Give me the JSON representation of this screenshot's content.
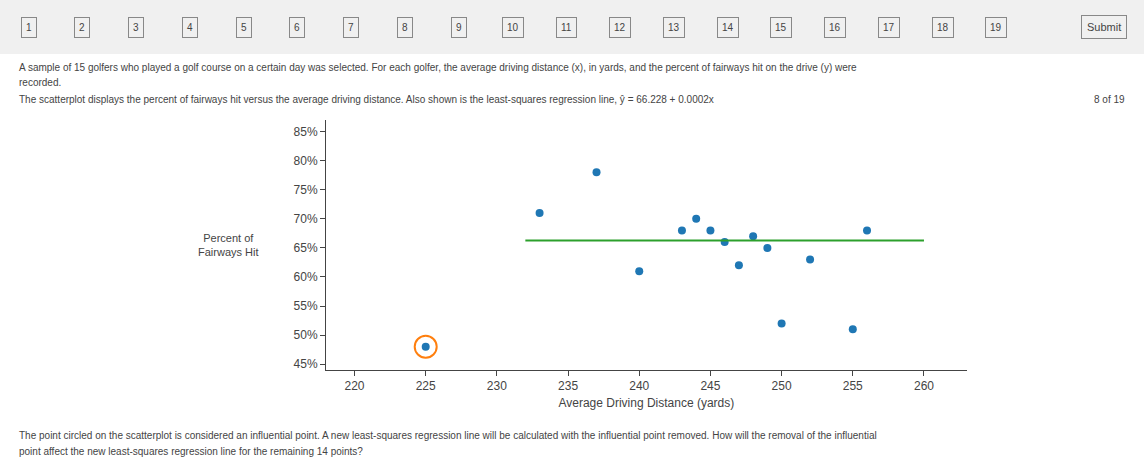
{
  "chart_data": {
    "type": "scatter",
    "xlabel": "Average Driving Distance (yards)",
    "ylabel": "Percent of\nFairways Hit",
    "series": [
      {
        "type": "scatter",
        "marker": "circle",
        "x": [
          225,
          233,
          237,
          240,
          243,
          244,
          245,
          246,
          247,
          248,
          249,
          250,
          252,
          255,
          256
        ],
        "values": [
          48,
          71,
          78,
          61,
          68,
          70,
          68,
          66,
          62,
          67,
          65,
          52,
          63,
          51,
          68
        ]
      },
      {
        "type": "scatter",
        "marker": "circle-open",
        "x": [
          225
        ],
        "values": [
          48
        ]
      },
      {
        "type": "line",
        "x": [
          232,
          260
        ],
        "values": [
          66.2744,
          66.28
        ]
      }
    ],
    "xlim": [
      218,
      263
    ],
    "ylim": [
      44,
      87
    ],
    "xticks": [
      220,
      225,
      230,
      235,
      240,
      245,
      250,
      255,
      260
    ],
    "yticks": [
      {
        "value": 45,
        "label": "45%"
      },
      {
        "value": 50,
        "label": "50%"
      },
      {
        "value": 55,
        "label": "55%"
      },
      {
        "value": 60,
        "label": "60%"
      },
      {
        "value": 65,
        "label": "65%"
      },
      {
        "value": 70,
        "label": "70%"
      },
      {
        "value": 75,
        "label": "75%"
      },
      {
        "value": 80,
        "label": "80%"
      },
      {
        "value": 85,
        "label": "85%"
      }
    ],
    "grid": false,
    "annotations": [
      "A sample of 15 golfers who played a golf course on a certain day was selected. For each golfer, the average driving distance (x), in yards, and the percent of fairways hit on the drive (y) were",
      "recorded.",
      "The scatterplot displays the percent of fairways hit versus the average driving distance. Also shown is the least-squares regression line, ŷ = 66.228 + 0.0002x",
      "8 of 19",
      "The point circled on the scatterplot is considered an influential point. A new least-squares regression line will be calculated with the influential point removed. How will the removal of the influential",
      "point affect the new least-squares regression line for the remaining 14 points?",
      "Submit",
      "1",
      "2",
      "3",
      "4",
      "5",
      "6",
      "7",
      "8",
      "9",
      "10",
      "11",
      "12",
      "13",
      "14",
      "15",
      "16",
      "17",
      "18",
      "19"
    ]
  }
}
